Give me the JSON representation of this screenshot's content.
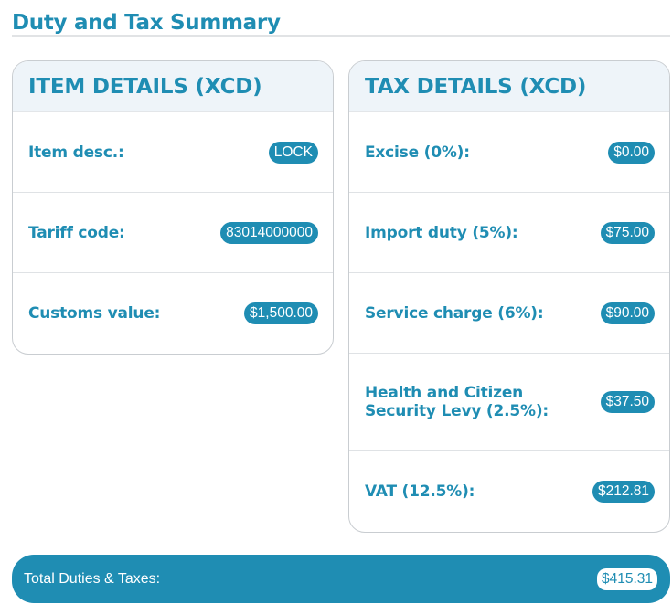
{
  "page": {
    "title": "Duty and Tax Summary"
  },
  "item_details": {
    "header": "ITEM DETAILS (XCD)",
    "rows": [
      {
        "label": "Item desc.:",
        "value": "LOCK"
      },
      {
        "label": "Tariff code:",
        "value": "83014000000"
      },
      {
        "label": "Customs value:",
        "value": "$1,500.00"
      }
    ]
  },
  "tax_details": {
    "header": "TAX DETAILS (XCD)",
    "rows": [
      {
        "label": "Excise (0%):",
        "value": "$0.00"
      },
      {
        "label": "Import duty (5%):",
        "value": "$75.00"
      },
      {
        "label": "Service charge (6%):",
        "value": "$90.00"
      },
      {
        "label": "Health and Citizen Security Levy (2.5%):",
        "value": "$37.50"
      },
      {
        "label": "VAT (12.5%):",
        "value": "$212.81"
      }
    ]
  },
  "total": {
    "label": "Total Duties & Taxes:",
    "value": "$415.31"
  },
  "colors": {
    "accent": "#1f8db3",
    "header_bg": "#eef4f9",
    "border": "#c9cdd1"
  }
}
